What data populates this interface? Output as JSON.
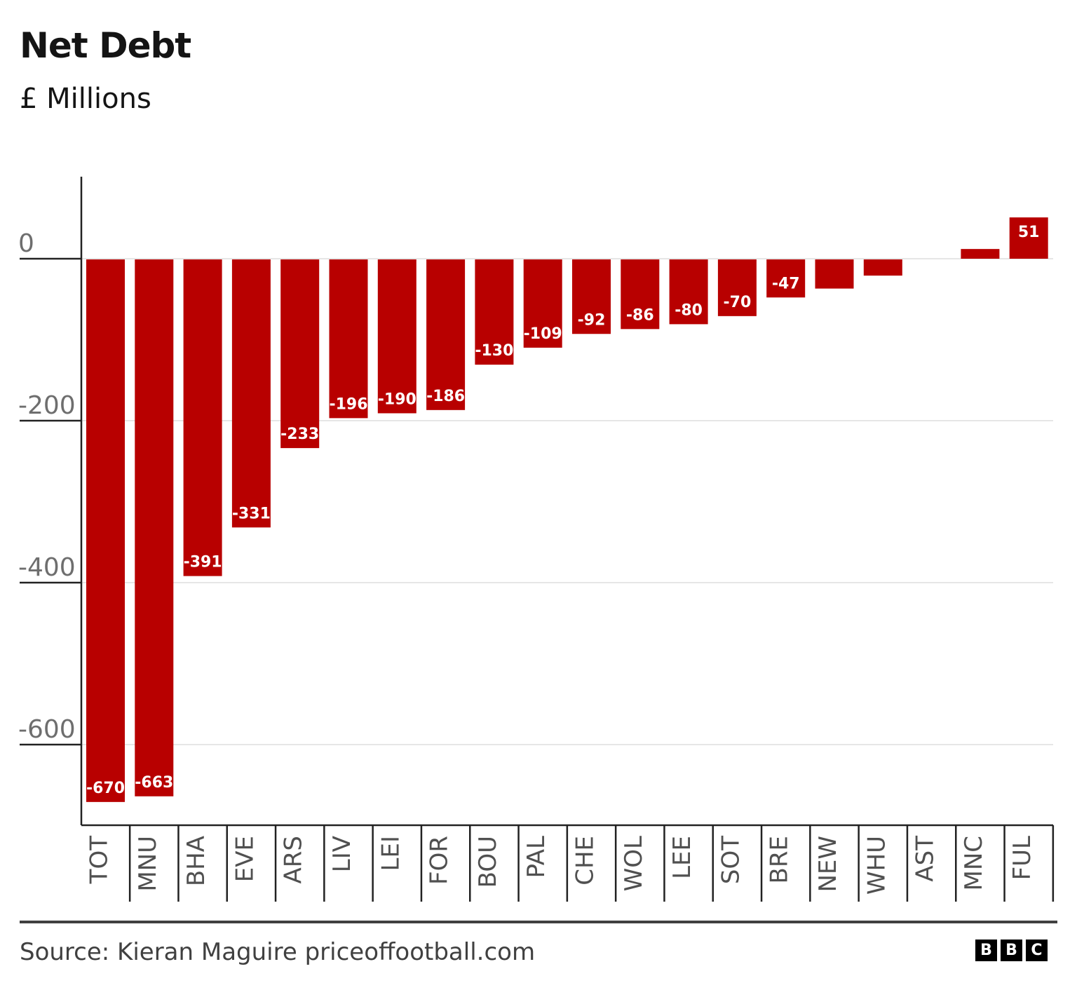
{
  "header": {
    "title": "Net Debt",
    "subtitle": "£ Millions"
  },
  "footer": {
    "source": "Source: Kieran Maguire priceoffootball.com",
    "logo_letters": [
      "B",
      "B",
      "C"
    ]
  },
  "colors": {
    "bar": "#b80000",
    "axis": "#222222",
    "grid": "#e6e6e6",
    "tick_label": "#6e6e6e",
    "category_label": "#505050",
    "data_label": "#ffffff"
  },
  "chart_data": {
    "type": "bar",
    "title": "Net Debt",
    "subtitle": "£ Millions",
    "xlabel": "",
    "ylabel": "£ Millions",
    "categories": [
      "TOT",
      "MNU",
      "BHA",
      "EVE",
      "ARS",
      "LIV",
      "LEI",
      "FOR",
      "BOU",
      "PAL",
      "CHE",
      "WOL",
      "LEE",
      "SOT",
      "BRE",
      "NEW",
      "WHU",
      "AST",
      "MNC",
      "FUL"
    ],
    "values": [
      -670,
      -663,
      -391,
      -331,
      -233,
      -196,
      -190,
      -186,
      -130,
      -109,
      -92,
      -86,
      -80,
      -70,
      -47,
      -36,
      -20,
      0,
      12,
      51
    ],
    "data_labels": [
      "-670",
      "-663",
      "-391",
      "-331",
      "-233",
      "-196",
      "-190",
      "-186",
      "-130",
      "-109",
      "-92",
      "-86",
      "-80",
      "-70",
      "-47",
      "",
      "",
      "",
      "",
      "51"
    ],
    "yticks": [
      0,
      -200,
      -400,
      -600
    ],
    "ylim": [
      -700,
      100
    ],
    "grid": true,
    "legend": null,
    "source": "Source: Kieran Maguire priceoffootball.com"
  }
}
